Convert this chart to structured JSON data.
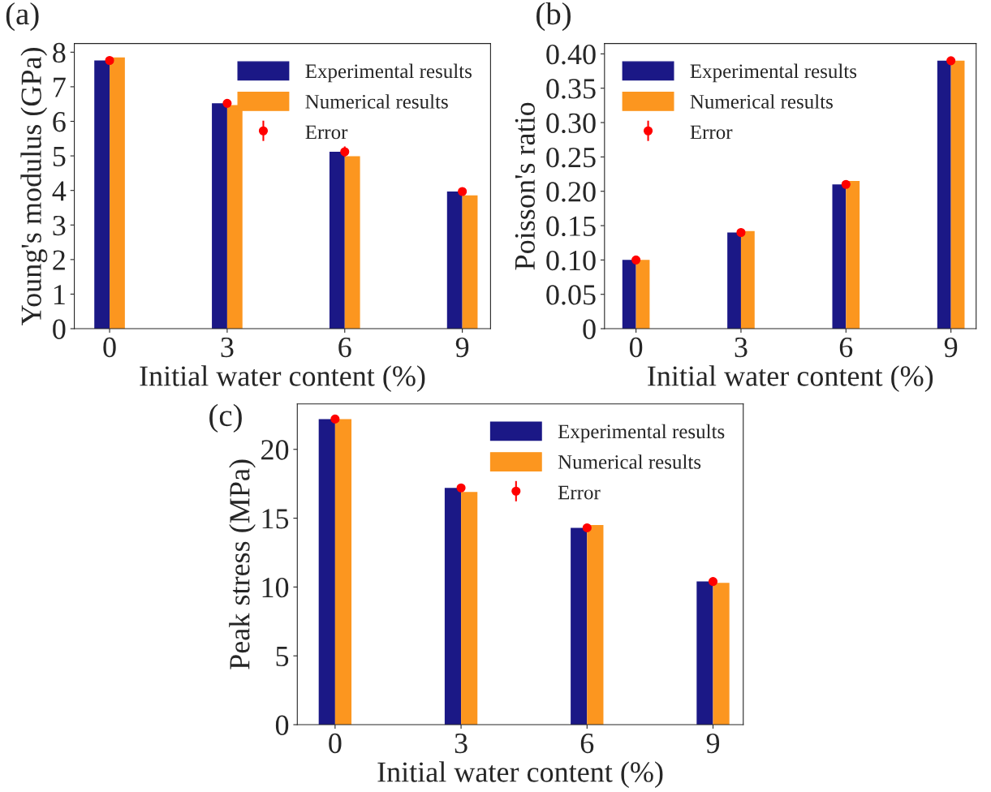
{
  "chart_data": [
    {
      "type": "bar",
      "annotations": [
        "(a)"
      ],
      "xlabel": "Initial water content (%)",
      "ylabel": "Young's modulus (GPa)",
      "categories": [
        "0",
        "3",
        "6",
        "9"
      ],
      "ylim": [
        0,
        8.25
      ],
      "yticks": [
        0,
        1,
        2,
        3,
        4,
        5,
        6,
        7,
        8
      ],
      "legend": "top right",
      "grid": false,
      "series": [
        {
          "name": "Experimental results",
          "color": "#1b1886",
          "values": [
            7.76,
            6.52,
            5.12,
            3.97
          ]
        },
        {
          "name": "Numerical results",
          "color": "#fc961f",
          "values": [
            7.85,
            6.47,
            4.99,
            3.86
          ]
        },
        {
          "name": "Error",
          "type": "scatter",
          "color": "#ff0000",
          "x": [
            "0",
            "3",
            "6",
            "9"
          ],
          "values": [
            7.76,
            6.52,
            5.12,
            3.97
          ],
          "errors": [
            null,
            null,
            0.15,
            null
          ]
        }
      ]
    },
    {
      "type": "bar",
      "annotations": [
        "(b)"
      ],
      "xlabel": "Initial water content (%)",
      "ylabel": "Poisson's ratio",
      "categories": [
        "0",
        "3",
        "6",
        "9"
      ],
      "ylim": [
        0,
        0.415
      ],
      "yticks": [
        {
          "value": 0,
          "label": "0"
        },
        {
          "value": 0.05,
          "label": "0.05"
        },
        {
          "value": 0.1,
          "label": "0.10"
        },
        {
          "value": 0.15,
          "label": "0.15"
        },
        {
          "value": 0.2,
          "label": "0.20"
        },
        {
          "value": 0.25,
          "label": "0.25"
        },
        {
          "value": 0.3,
          "label": "0.30"
        },
        {
          "value": 0.35,
          "label": "0.35"
        },
        {
          "value": 0.4,
          "label": "0.40"
        }
      ],
      "legend": "top left",
      "grid": false,
      "series": [
        {
          "name": "Experimental results",
          "color": "#1b1886",
          "values": [
            0.1,
            0.14,
            0.21,
            0.39
          ]
        },
        {
          "name": "Numerical results",
          "color": "#fc961f",
          "values": [
            0.1,
            0.142,
            0.215,
            0.39
          ]
        },
        {
          "name": "Error",
          "type": "scatter",
          "color": "#ff0000",
          "x": [
            "0",
            "3",
            "6",
            "9"
          ],
          "values": [
            0.1,
            0.14,
            0.21,
            0.39
          ]
        }
      ]
    },
    {
      "type": "bar",
      "annotations": [
        "(c)"
      ],
      "xlabel": "Initial water content (%)",
      "ylabel": "Peak stress (MPa)",
      "categories": [
        "0",
        "3",
        "6",
        "9"
      ],
      "ylim": [
        0,
        23.3
      ],
      "yticks": [
        0,
        5,
        10,
        15,
        20
      ],
      "legend": "top right",
      "grid": false,
      "series": [
        {
          "name": "Experimental results",
          "color": "#1b1886",
          "values": [
            22.2,
            17.2,
            14.3,
            10.4
          ]
        },
        {
          "name": "Numerical results",
          "color": "#fc961f",
          "values": [
            22.2,
            16.9,
            14.5,
            10.3
          ]
        },
        {
          "name": "Error",
          "type": "scatter",
          "color": "#ff0000",
          "x": [
            "0",
            "3",
            "6",
            "9"
          ],
          "values": [
            22.2,
            17.2,
            14.3,
            10.4
          ]
        }
      ]
    }
  ]
}
